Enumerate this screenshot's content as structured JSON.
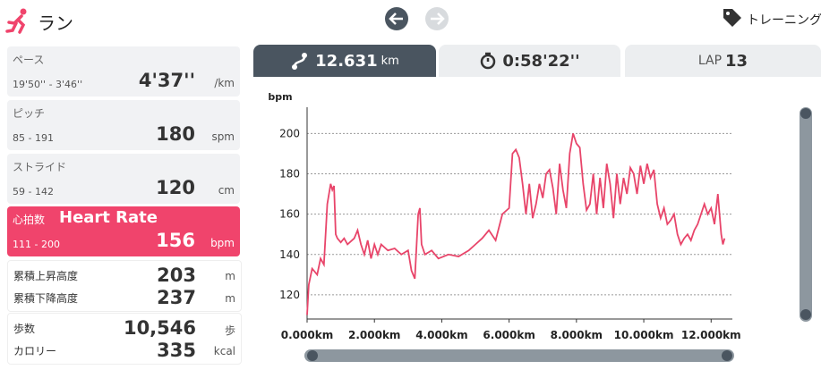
{
  "header": {
    "title": "ラン",
    "action": "トレーニング"
  },
  "tabs": {
    "distance": "12.631",
    "distance_unit": "km",
    "time": "0:58'22''",
    "lap_label": "LAP",
    "lap": "13"
  },
  "panel": [
    {
      "label": "ペース",
      "range": "19'50'' - 3'46''",
      "value": "4'37''",
      "unit": "/km"
    },
    {
      "label": "ピッチ",
      "range": "85 - 191",
      "value": "180",
      "unit": "spm"
    },
    {
      "label": "ストライド",
      "range": "59 - 142",
      "value": "120",
      "unit": "cm"
    },
    {
      "label": "心拍数",
      "sub": "Heart Rate",
      "range": "111 - 200",
      "value": "156",
      "unit": "bpm"
    }
  ],
  "totals": [
    {
      "label": "累積上昇高度",
      "value": "203",
      "unit": "m"
    },
    {
      "label": "累積下降高度",
      "value": "237",
      "unit": "m"
    },
    {
      "label": "歩数",
      "value": "10,546",
      "unit": "歩"
    },
    {
      "label": "カロリー",
      "value": "335",
      "unit": "kcal"
    }
  ],
  "chart_data": {
    "type": "line",
    "y_label": "bpm",
    "color": "#e8456a",
    "grid": true,
    "xlim": [
      0,
      12.631
    ],
    "ylim": [
      108,
      213
    ],
    "yticks": [
      120,
      140,
      160,
      180,
      200
    ],
    "xticks": [
      {
        "value": 0,
        "label": "0.000km"
      },
      {
        "value": 2,
        "label": "2.000km"
      },
      {
        "value": 4,
        "label": "4.000km"
      },
      {
        "value": 6,
        "label": "6.000km"
      },
      {
        "value": 8,
        "label": "8.000km"
      },
      {
        "value": 10,
        "label": "10.000km"
      },
      {
        "value": 12,
        "label": "12.000km"
      }
    ],
    "x": [
      0,
      0.05,
      0.15,
      0.3,
      0.4,
      0.5,
      0.6,
      0.7,
      0.75,
      0.8,
      0.85,
      0.9,
      1.0,
      1.1,
      1.2,
      1.4,
      1.5,
      1.6,
      1.7,
      1.8,
      1.9,
      2.0,
      2.1,
      2.2,
      2.4,
      2.6,
      2.8,
      3.0,
      3.1,
      3.2,
      3.3,
      3.35,
      3.4,
      3.5,
      3.7,
      3.9,
      4.2,
      4.5,
      4.8,
      5.0,
      5.2,
      5.4,
      5.6,
      5.8,
      6.0,
      6.1,
      6.2,
      6.3,
      6.4,
      6.5,
      6.6,
      6.7,
      6.8,
      6.9,
      7.0,
      7.1,
      7.2,
      7.3,
      7.4,
      7.5,
      7.6,
      7.7,
      7.8,
      7.9,
      8.0,
      8.1,
      8.2,
      8.3,
      8.4,
      8.5,
      8.6,
      8.7,
      8.8,
      8.9,
      9.0,
      9.1,
      9.2,
      9.3,
      9.4,
      9.5,
      9.6,
      9.7,
      9.8,
      9.9,
      10.0,
      10.1,
      10.2,
      10.3,
      10.4,
      10.5,
      10.6,
      10.7,
      10.8,
      10.9,
      11.0,
      11.1,
      11.2,
      11.3,
      11.4,
      11.5,
      11.6,
      11.7,
      11.8,
      11.9,
      12.0,
      12.1,
      12.2,
      12.3,
      12.35,
      12.4
    ],
    "values": [
      110,
      125,
      133,
      130,
      138,
      135,
      165,
      175,
      172,
      174,
      150,
      148,
      146,
      148,
      145,
      148,
      152,
      145,
      140,
      147,
      138,
      145,
      140,
      145,
      142,
      143,
      140,
      142,
      132,
      128,
      160,
      163,
      145,
      140,
      142,
      138,
      140,
      139,
      142,
      145,
      148,
      152,
      147,
      160,
      163,
      190,
      192,
      188,
      175,
      160,
      175,
      158,
      165,
      175,
      168,
      180,
      182,
      173,
      160,
      185,
      172,
      163,
      190,
      200,
      195,
      193,
      175,
      162,
      165,
      180,
      160,
      178,
      163,
      185,
      175,
      158,
      180,
      165,
      178,
      170,
      183,
      180,
      170,
      184,
      175,
      185,
      178,
      182,
      165,
      158,
      163,
      155,
      157,
      160,
      150,
      145,
      148,
      150,
      147,
      152,
      155,
      160,
      165,
      160,
      163,
      155,
      170,
      150,
      145,
      148
    ]
  }
}
